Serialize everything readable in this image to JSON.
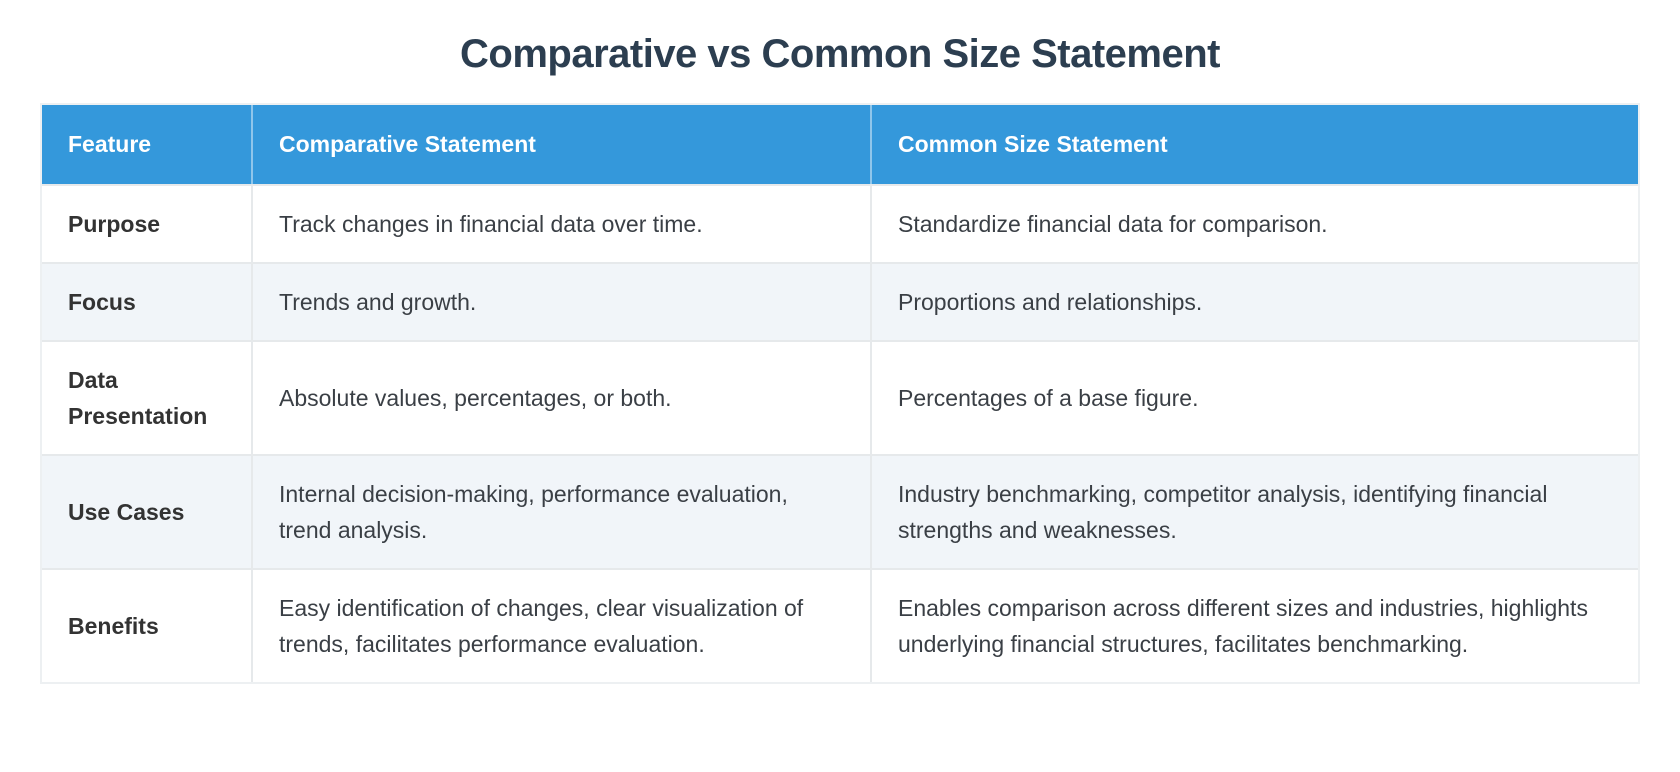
{
  "chart_data": {
    "type": "table",
    "title": "Comparative vs Common Size Statement",
    "columns": [
      "Feature",
      "Comparative Statement",
      "Common Size Statement"
    ],
    "rows": [
      [
        "Purpose",
        "Track changes in financial data over time.",
        "Standardize financial data for comparison."
      ],
      [
        "Focus",
        "Trends and growth.",
        "Proportions and relationships."
      ],
      [
        "Data Presentation",
        "Absolute values, percentages, or both.",
        "Percentages of a base figure."
      ],
      [
        "Use Cases",
        "Internal decision-making, performance evaluation, trend analysis.",
        "Industry benchmarking, competitor analysis, identifying financial strengths and weaknesses."
      ],
      [
        "Benefits",
        "Easy identification of changes, clear visualization of trends, facilitates performance evaluation.",
        "Enables comparison across different sizes and industries, highlights underlying financial structures, facilitates benchmarking."
      ]
    ],
    "layout": {
      "legend": "none",
      "grid": "cell-borders",
      "zebra_rows": [
        2,
        4
      ]
    },
    "colors": {
      "header_bg": "#3498db",
      "header_text": "#ffffff",
      "header_divider": "#6db6e6",
      "title_text": "#2c3e50",
      "body_text": "#3a3f45",
      "row_label_text": "#333333",
      "zebra_row_bg": "#f1f5f9",
      "border": "#e6e9eb",
      "page_bg": "#ffffff"
    }
  }
}
